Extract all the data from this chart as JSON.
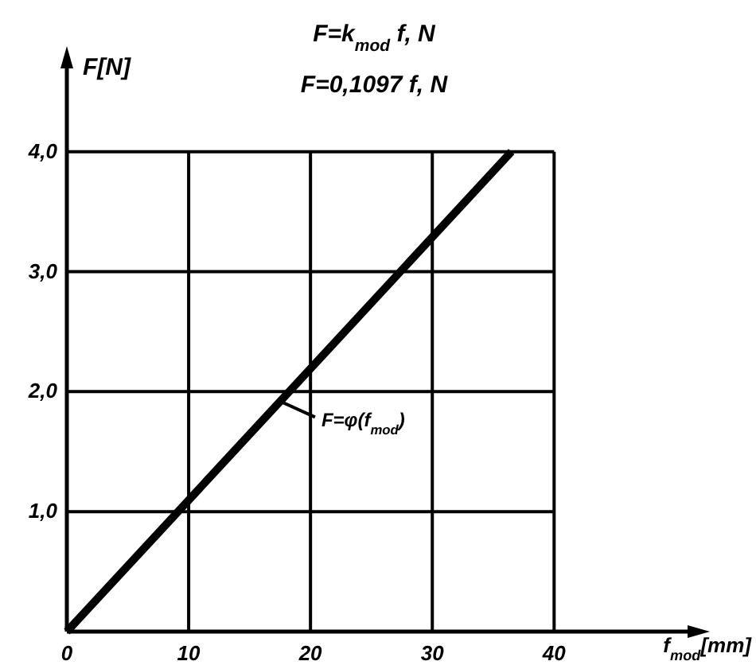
{
  "chart_data": {
    "type": "line",
    "title": "F=k$_{mod}$ f, N",
    "subtitle": "F=0,1097 f, N",
    "xlabel": "f$_{mod}$[mm]",
    "ylabel": "F[N]",
    "x": [
      0,
      36.5
    ],
    "series": [
      {
        "color": "#000000",
        "values": [
          0,
          4.0
        ]
      }
    ],
    "xlim": [
      0,
      52
    ],
    "ylim": [
      0,
      4.8
    ],
    "xticks": [
      0,
      10,
      20,
      30,
      40
    ],
    "yticks": [
      {
        "value": 1,
        "label": "1,0"
      },
      {
        "value": 2,
        "label": "2,0"
      },
      {
        "value": 3,
        "label": "3,0"
      },
      {
        "value": 4,
        "label": "4,0"
      }
    ],
    "annotations": [
      {
        "text": "F=φ(f$_{mod}$)",
        "x": 17.5,
        "y": 1.92
      }
    ],
    "grid": true,
    "marker": "none",
    "line_style": "solid"
  }
}
